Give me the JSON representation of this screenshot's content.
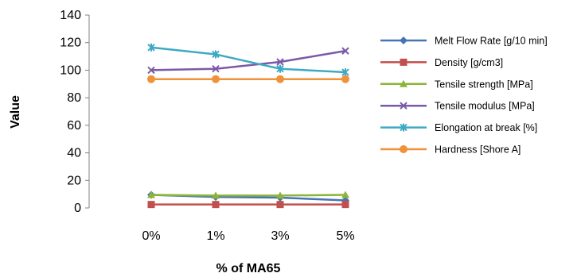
{
  "chart_data": {
    "type": "line",
    "categories": [
      "0%",
      "1%",
      "3%",
      "5%"
    ],
    "xlabel": "% of MA65",
    "ylabel": "Value",
    "ylim": [
      0,
      140
    ],
    "yticks": [
      "0",
      "20",
      "40",
      "60",
      "80",
      "100",
      "120",
      "140"
    ],
    "grid": false,
    "legend_position": "right",
    "series": [
      {
        "name": "Melt Flow Rate [g/10 min]",
        "values": [
          9.5,
          8.0,
          7.5,
          5.5
        ],
        "color": "#4575B4",
        "marker": "diamond"
      },
      {
        "name": "Density [g/cm3]",
        "values": [
          2.5,
          2.5,
          2.5,
          2.5
        ],
        "color": "#C0504D",
        "marker": "square"
      },
      {
        "name": "Tensile strength [MPa]",
        "values": [
          9.5,
          9.0,
          9.0,
          9.5
        ],
        "color": "#8DB43A",
        "marker": "triangle"
      },
      {
        "name": "Tensile modulus [MPa]",
        "values": [
          100,
          101,
          106,
          114
        ],
        "color": "#7A5AA6",
        "marker": "x"
      },
      {
        "name": "Elongation at break [%]",
        "values": [
          116.5,
          111.5,
          101,
          98.5
        ],
        "color": "#3DA9C4",
        "marker": "star"
      },
      {
        "name": "Hardness  [Shore A]",
        "values": [
          93.5,
          93.5,
          93.5,
          93.5
        ],
        "color": "#F0923A",
        "marker": "circle"
      }
    ]
  }
}
